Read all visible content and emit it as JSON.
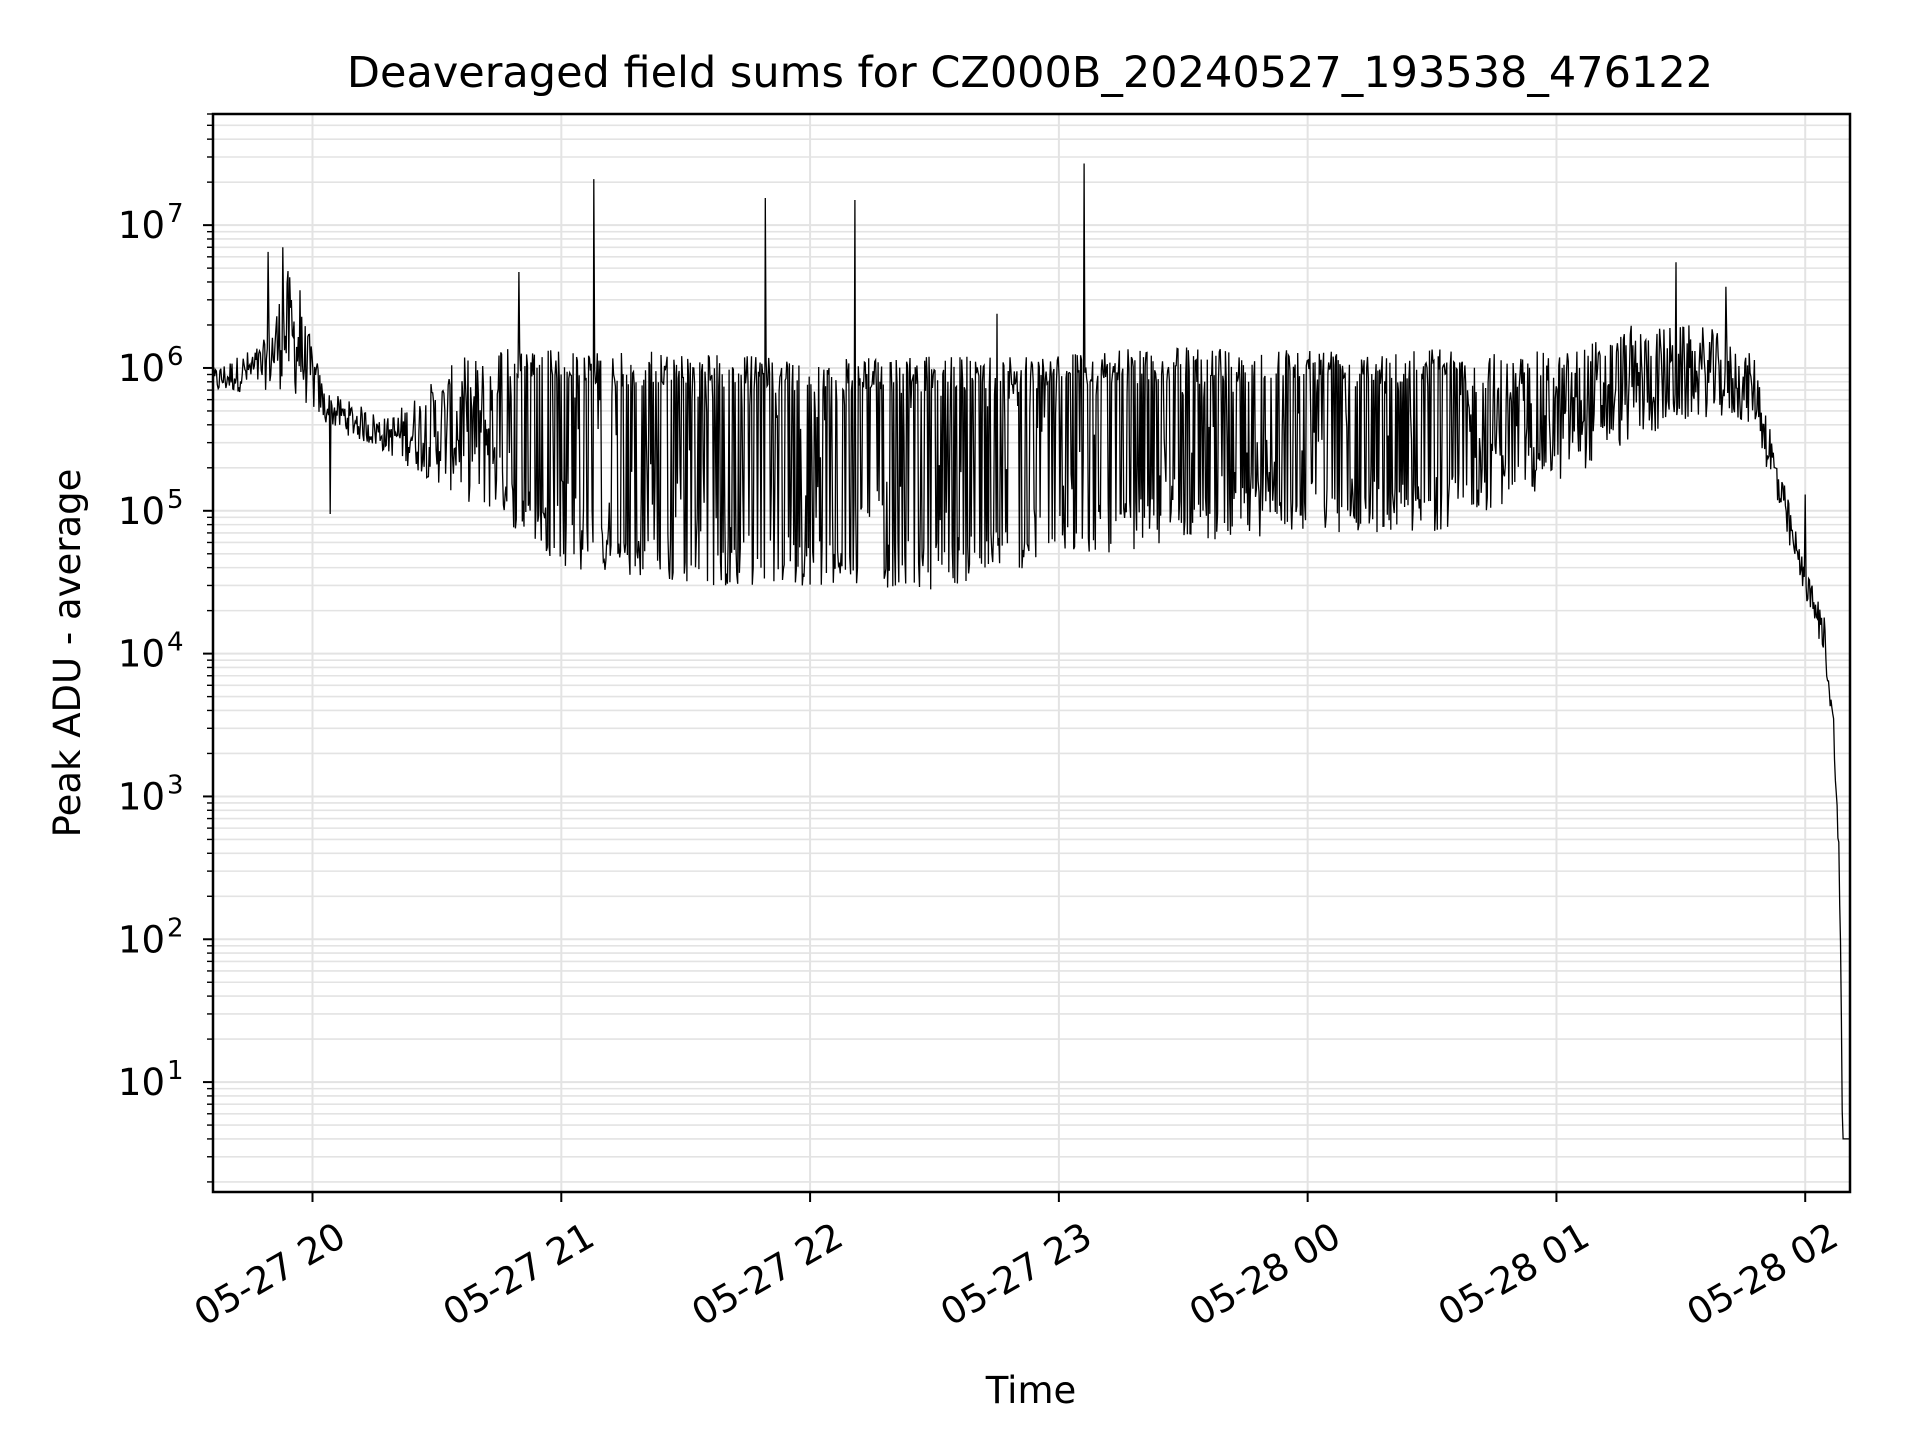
{
  "chart_data": {
    "type": "line",
    "title": "Deaveraged field sums for CZ000B_20240527_193538_476122",
    "xlabel": "Time",
    "ylabel": "Peak ADU - average",
    "yscale": "log",
    "ylim": [
      1.7,
      60000000
    ],
    "xlim_hours": [
      19.6,
      26.18
    ],
    "grid": true,
    "legend": "none",
    "line_color": "#000000",
    "grid_color": "#e3e3e3",
    "x_ticks": [
      {
        "hour": 20,
        "label": "05-27 20"
      },
      {
        "hour": 21,
        "label": "05-27 21"
      },
      {
        "hour": 22,
        "label": "05-27 22"
      },
      {
        "hour": 23,
        "label": "05-27 23"
      },
      {
        "hour": 24,
        "label": "05-28 00"
      },
      {
        "hour": 25,
        "label": "05-28 01"
      },
      {
        "hour": 26,
        "label": "05-28 02"
      }
    ],
    "y_ticks": [
      {
        "value": 10,
        "base": "10",
        "exp": "1"
      },
      {
        "value": 100,
        "base": "10",
        "exp": "2"
      },
      {
        "value": 1000,
        "base": "10",
        "exp": "3"
      },
      {
        "value": 10000,
        "base": "10",
        "exp": "4"
      },
      {
        "value": 100000,
        "base": "10",
        "exp": "5"
      },
      {
        "value": 1000000,
        "base": "10",
        "exp": "6"
      },
      {
        "value": 10000000,
        "base": "10",
        "exp": "7"
      }
    ],
    "envelope": [
      {
        "hour": 19.6,
        "upper": 1000000,
        "lower": 650000
      },
      {
        "hour": 19.8,
        "upper": 1500000,
        "lower": 700000
      },
      {
        "hour": 19.9,
        "upper": 5000000,
        "lower": 700000
      },
      {
        "hour": 20.0,
        "upper": 1500000,
        "lower": 500000
      },
      {
        "hour": 20.05,
        "upper": 700000,
        "lower": 400000
      },
      {
        "hour": 20.3,
        "upper": 450000,
        "lower": 250000
      },
      {
        "hour": 20.6,
        "upper": 1200000,
        "lower": 120000
      },
      {
        "hour": 20.9,
        "upper": 1500000,
        "lower": 60000
      },
      {
        "hour": 21.0,
        "upper": 1300000,
        "lower": 40000
      },
      {
        "hour": 21.5,
        "upper": 1300000,
        "lower": 30000
      },
      {
        "hour": 22.0,
        "upper": 1150000,
        "lower": 30000
      },
      {
        "hour": 22.5,
        "upper": 1200000,
        "lower": 28000
      },
      {
        "hour": 23.0,
        "upper": 1300000,
        "lower": 45000
      },
      {
        "hour": 23.5,
        "upper": 1400000,
        "lower": 60000
      },
      {
        "hour": 24.0,
        "upper": 1400000,
        "lower": 70000
      },
      {
        "hour": 24.5,
        "upper": 1400000,
        "lower": 70000
      },
      {
        "hour": 25.0,
        "upper": 1300000,
        "lower": 150000
      },
      {
        "hour": 25.3,
        "upper": 2000000,
        "lower": 300000
      },
      {
        "hour": 25.6,
        "upper": 2000000,
        "lower": 450000
      },
      {
        "hour": 25.8,
        "upper": 1200000,
        "lower": 400000
      },
      {
        "hour": 25.9,
        "upper": 200000,
        "lower": 80000
      },
      {
        "hour": 26.0,
        "upper": 40000,
        "lower": 25000
      },
      {
        "hour": 26.08,
        "upper": 18000,
        "lower": 9000
      },
      {
        "hour": 26.12,
        "upper": 3000,
        "lower": 1500
      },
      {
        "hour": 26.14,
        "upper": 300,
        "lower": 100
      },
      {
        "hour": 26.15,
        "upper": 4,
        "lower": 4
      },
      {
        "hour": 26.18,
        "upper": 4,
        "lower": 4
      }
    ],
    "spikes": [
      {
        "hour": 19.82,
        "value": 6500000
      },
      {
        "hour": 19.88,
        "value": 7000000
      },
      {
        "hour": 19.95,
        "value": 3500000
      },
      {
        "hour": 20.07,
        "value": 95000
      },
      {
        "hour": 20.83,
        "value": 4700000
      },
      {
        "hour": 21.13,
        "value": 21000000
      },
      {
        "hour": 21.82,
        "value": 15500000
      },
      {
        "hour": 22.18,
        "value": 15000000
      },
      {
        "hour": 22.75,
        "value": 2400000
      },
      {
        "hour": 23.1,
        "value": 27000000
      },
      {
        "hour": 25.48,
        "value": 5500000
      },
      {
        "hour": 25.68,
        "value": 3700000
      },
      {
        "hour": 26.0,
        "value": 130000
      }
    ]
  }
}
